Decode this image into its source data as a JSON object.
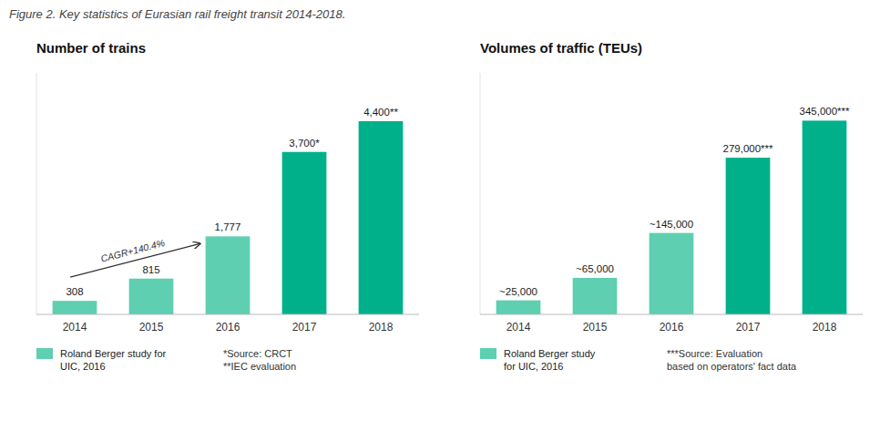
{
  "title": "Figure 2. Key statistics of Eurasian rail freight transit 2014-2018.",
  "chart_data": [
    {
      "type": "bar",
      "title": "Number of trains",
      "categories": [
        "2014",
        "2015",
        "2016",
        "2017",
        "2018"
      ],
      "values": [
        308,
        815,
        1777,
        3700,
        4400
      ],
      "value_labels": [
        "308",
        "815",
        "1,777",
        "3,700*",
        "4,400**"
      ],
      "data_labels": true,
      "colors": [
        "#5ecfb0",
        "#5ecfb0",
        "#5ecfb0",
        "#00b08a",
        "#00b08a"
      ],
      "ylim": [
        0,
        5500
      ],
      "tick_labels": "x",
      "grid": false,
      "annotations": [
        {
          "text": "CAGR+140.4%"
        },
        {
          "text": "Roland Berger study for\nUIC, 2016",
          "color": "#5ecfb0"
        },
        {
          "text": "*Source: CRCT\n**IEC evaluation"
        }
      ]
    },
    {
      "type": "bar",
      "title": "Volumes of traffic (TEUs)",
      "categories": [
        "2014",
        "2015",
        "2016",
        "2017",
        "2018"
      ],
      "values": [
        25000,
        65000,
        145000,
        279000,
        345000
      ],
      "value_labels": [
        "~25,000",
        "~65,000",
        "~145,000",
        "279,000***",
        "345,000***"
      ],
      "data_labels": true,
      "colors": [
        "#5ecfb0",
        "#5ecfb0",
        "#5ecfb0",
        "#00b08a",
        "#00b08a"
      ],
      "ylim": [
        0,
        430000
      ],
      "tick_labels": "x",
      "grid": false,
      "annotations": [
        {
          "text": "Roland Berger study\nfor UIC, 2016",
          "color": "#5ecfb0"
        },
        {
          "text": "***Source: Evaluation\nbased on operators' fact data"
        }
      ]
    }
  ]
}
